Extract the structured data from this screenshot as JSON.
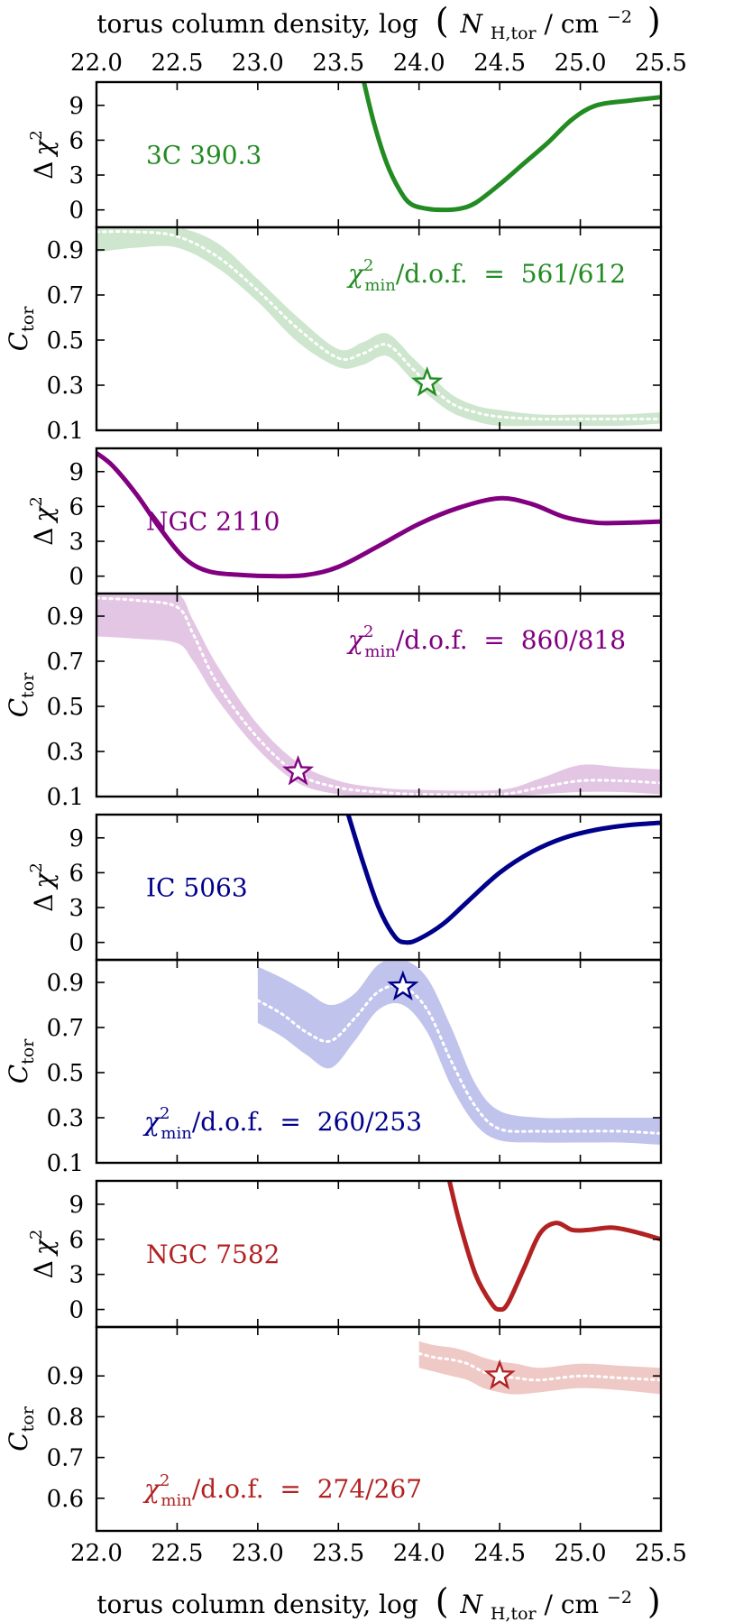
{
  "figure": {
    "x_axis_title": {
      "prefix": "torus column density, log",
      "open_paren": "(",
      "var": "N",
      "var_sub": "H,tor",
      "sep": " / cm",
      "unit_sup": "−2",
      "close_paren": ")"
    },
    "x_ticks": [
      "22.0",
      "22.5",
      "23.0",
      "23.5",
      "24.0",
      "24.5",
      "25.0",
      "25.5"
    ],
    "ylabel_delta": {
      "delta": "Δ",
      "chi": "χ",
      "sup": "2"
    },
    "ylabel_ctor": {
      "main": "C",
      "sub": "tor"
    },
    "stat_parts": {
      "chi": "χ",
      "sup": "2",
      "sub": "min",
      "rest": "/d.o.f.  =  "
    }
  },
  "chart_data": [
    {
      "type": "line",
      "source": "3C 390.3",
      "color": "#228b22",
      "band_color": "#cde6cd",
      "delta_chi2": {
        "title": "3C 390.3",
        "ylabel": "Δχ²",
        "ylim": [
          -1.5,
          11
        ],
        "yticks": [
          "9",
          "6",
          "3",
          "0"
        ],
        "x": [
          23.65,
          23.72,
          23.8,
          23.88,
          23.95,
          24.05,
          24.15,
          24.25,
          24.35,
          24.5,
          24.65,
          24.8,
          24.95,
          25.1,
          25.3,
          25.5
        ],
        "y": [
          11.5,
          7.5,
          4.0,
          1.7,
          0.5,
          0.1,
          0.0,
          0.1,
          0.6,
          2.2,
          4.0,
          5.8,
          7.8,
          9.0,
          9.4,
          9.7
        ]
      },
      "c_tor": {
        "ylabel": "C_tor",
        "ylim": [
          0.1,
          1.0
        ],
        "yticks": [
          "0.9",
          "0.7",
          "0.5",
          "0.3",
          "0.1"
        ],
        "stat_value": "561/612",
        "x": [
          22.0,
          22.25,
          22.5,
          22.75,
          23.0,
          23.25,
          23.5,
          23.65,
          23.8,
          23.95,
          24.05,
          24.2,
          24.35,
          24.5,
          24.75,
          25.0,
          25.25,
          25.5
        ],
        "median": [
          0.98,
          0.98,
          0.96,
          0.87,
          0.72,
          0.55,
          0.42,
          0.44,
          0.48,
          0.38,
          0.31,
          0.22,
          0.18,
          0.16,
          0.15,
          0.15,
          0.15,
          0.15
        ],
        "lower": [
          0.89,
          0.91,
          0.91,
          0.82,
          0.67,
          0.49,
          0.38,
          0.39,
          0.43,
          0.33,
          0.26,
          0.18,
          0.14,
          0.12,
          0.12,
          0.12,
          0.12,
          0.13
        ],
        "upper": [
          1.0,
          1.0,
          1.0,
          0.93,
          0.77,
          0.6,
          0.46,
          0.49,
          0.53,
          0.43,
          0.36,
          0.26,
          0.21,
          0.19,
          0.17,
          0.17,
          0.17,
          0.18
        ],
        "best_fit": {
          "x": 24.05,
          "y": 0.31
        }
      }
    },
    {
      "type": "line",
      "source": "NGC 2110",
      "color": "#800080",
      "band_color": "#e3c6e3",
      "delta_chi2": {
        "title": "NGC 2110",
        "ylabel": "Δχ²",
        "ylim": [
          -1.5,
          11
        ],
        "yticks": [
          "9",
          "6",
          "3",
          "0"
        ],
        "x": [
          22.0,
          22.1,
          22.25,
          22.4,
          22.55,
          22.7,
          22.9,
          23.1,
          23.3,
          23.5,
          23.75,
          24.0,
          24.25,
          24.5,
          24.7,
          24.9,
          25.1,
          25.3,
          25.5
        ],
        "y": [
          10.6,
          9.5,
          7.0,
          4.0,
          1.5,
          0.4,
          0.1,
          0.0,
          0.1,
          0.8,
          2.6,
          4.5,
          5.9,
          6.7,
          6.2,
          5.1,
          4.6,
          4.6,
          4.7
        ]
      },
      "c_tor": {
        "ylabel": "C_tor",
        "ylim": [
          0.1,
          1.0
        ],
        "yticks": [
          "0.9",
          "0.7",
          "0.5",
          "0.3",
          "0.1"
        ],
        "stat_value": "860/818",
        "x": [
          22.0,
          22.25,
          22.5,
          22.6,
          22.75,
          23.0,
          23.25,
          23.5,
          23.75,
          24.0,
          24.5,
          24.75,
          25.0,
          25.25,
          25.5
        ],
        "median": [
          0.98,
          0.97,
          0.94,
          0.82,
          0.6,
          0.36,
          0.2,
          0.14,
          0.12,
          0.11,
          0.11,
          0.14,
          0.17,
          0.17,
          0.16
        ],
        "lower": [
          0.81,
          0.8,
          0.78,
          0.7,
          0.53,
          0.31,
          0.16,
          0.11,
          0.1,
          0.1,
          0.1,
          0.11,
          0.12,
          0.12,
          0.11
        ],
        "upper": [
          1.0,
          1.0,
          1.0,
          0.88,
          0.68,
          0.42,
          0.25,
          0.17,
          0.14,
          0.13,
          0.13,
          0.18,
          0.24,
          0.23,
          0.22
        ],
        "best_fit": {
          "x": 23.25,
          "y": 0.21
        }
      }
    },
    {
      "type": "line",
      "source": "IC 5063",
      "color": "#00008b",
      "band_color": "#c0c3ec",
      "delta_chi2": {
        "title": "IC 5063",
        "ylabel": "Δχ²",
        "ylim": [
          -1.5,
          11
        ],
        "yticks": [
          "9",
          "6",
          "3",
          "0"
        ],
        "x": [
          23.55,
          23.65,
          23.75,
          23.85,
          23.92,
          24.0,
          24.15,
          24.3,
          24.5,
          24.7,
          24.9,
          25.1,
          25.3,
          25.5
        ],
        "y": [
          11.5,
          7.0,
          3.0,
          0.5,
          0.0,
          0.3,
          1.6,
          3.5,
          6.0,
          7.8,
          9.0,
          9.7,
          10.1,
          10.3
        ]
      },
      "c_tor": {
        "ylabel": "C_tor",
        "ylim": [
          0.1,
          1.0
        ],
        "yticks": [
          "0.9",
          "0.7",
          "0.5",
          "0.3",
          "0.1"
        ],
        "stat_value": "260/253",
        "x": [
          23.0,
          23.15,
          23.3,
          23.45,
          23.6,
          23.75,
          23.9,
          24.05,
          24.2,
          24.35,
          24.5,
          24.75,
          25.0,
          25.25,
          25.5
        ],
        "median": [
          0.82,
          0.76,
          0.68,
          0.64,
          0.74,
          0.86,
          0.88,
          0.78,
          0.55,
          0.35,
          0.25,
          0.24,
          0.24,
          0.24,
          0.23
        ],
        "lower": [
          0.72,
          0.66,
          0.58,
          0.52,
          0.64,
          0.78,
          0.8,
          0.68,
          0.44,
          0.27,
          0.2,
          0.19,
          0.19,
          0.19,
          0.18
        ],
        "upper": [
          0.97,
          0.92,
          0.86,
          0.8,
          0.85,
          0.98,
          1.0,
          0.92,
          0.7,
          0.45,
          0.33,
          0.3,
          0.3,
          0.3,
          0.3
        ],
        "best_fit": {
          "x": 23.9,
          "y": 0.88
        }
      }
    },
    {
      "type": "line",
      "source": "NGC 7582",
      "color": "#b22222",
      "band_color": "#efc9c6",
      "delta_chi2": {
        "title": "NGC 7582",
        "ylabel": "Δχ²",
        "ylim": [
          -1.5,
          11
        ],
        "yticks": [
          "9",
          "6",
          "3",
          "0"
        ],
        "x": [
          24.18,
          24.25,
          24.35,
          24.45,
          24.5,
          24.55,
          24.65,
          24.75,
          24.85,
          24.95,
          25.05,
          25.2,
          25.35,
          25.5
        ],
        "y": [
          11.5,
          7.5,
          3.0,
          0.5,
          0.0,
          0.5,
          3.5,
          6.5,
          7.4,
          6.8,
          6.8,
          7.0,
          6.6,
          6.0
        ]
      },
      "c_tor": {
        "ylabel": "C_tor",
        "ylim": [
          0.52,
          1.02
        ],
        "yticks": [
          "0.9",
          "0.8",
          "0.7",
          "0.6"
        ],
        "stat_value": "274/267",
        "x": [
          24.0,
          24.1,
          24.2,
          24.3,
          24.4,
          24.5,
          24.6,
          24.75,
          25.0,
          25.25,
          25.5
        ],
        "median": [
          0.955,
          0.945,
          0.94,
          0.93,
          0.91,
          0.9,
          0.895,
          0.89,
          0.9,
          0.895,
          0.89
        ],
        "lower": [
          0.92,
          0.91,
          0.9,
          0.89,
          0.87,
          0.86,
          0.855,
          0.86,
          0.87,
          0.865,
          0.855
        ],
        "upper": [
          0.985,
          0.975,
          0.97,
          0.96,
          0.945,
          0.935,
          0.93,
          0.92,
          0.93,
          0.925,
          0.92
        ],
        "best_fit": {
          "x": 24.5,
          "y": 0.9
        }
      }
    }
  ]
}
